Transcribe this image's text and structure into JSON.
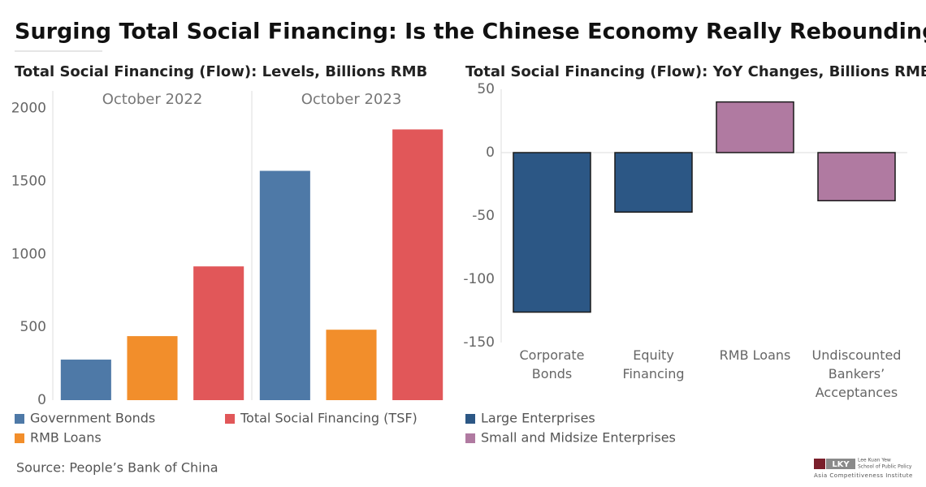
{
  "title": "Surging Total Social Financing: Is the Chinese Economy Really Rebounding?",
  "source": "Source: People’s Bank of China",
  "logo": {
    "mark": "LKY",
    "name": "Lee Kuan Yew",
    "school": "School of Public Policy",
    "institute": "Asia Competitiveness Institute"
  },
  "chart_data": [
    {
      "type": "bar",
      "title": "Total Social Financing (Flow): Levels, Billions RMB",
      "categories": [
        "October 2022",
        "October 2023"
      ],
      "series": [
        {
          "name": "Government Bonds",
          "color": "#4e79a7",
          "values": [
            278,
            1572
          ]
        },
        {
          "name": "RMB Loans",
          "color": "#f28e2b",
          "values": [
            439,
            483
          ]
        },
        {
          "name": "Total Social Financing (TSF)",
          "color": "#e15759",
          "values": [
            917,
            1856
          ]
        }
      ],
      "ylim": [
        0,
        2120
      ],
      "yticks": [
        0,
        500,
        1000,
        1500,
        2000
      ],
      "grid": false
    },
    {
      "type": "bar",
      "title": "Total Social Financing (Flow): YoY Changes, Billions RMB",
      "categories": [
        "Corporate Bonds",
        "Equity Financing",
        "RMB Loans",
        "Undiscounted Bankers’ Acceptances"
      ],
      "series": [
        {
          "name": "Large Enterprises",
          "color": "#2c5785",
          "values": [
            -126,
            -47,
            null,
            null
          ]
        },
        {
          "name": "Small and Midsize Enterprises",
          "color": "#b07aa1",
          "values": [
            null,
            null,
            40,
            -38
          ]
        }
      ],
      "edgecolor": "#1a1a1a",
      "ylim": [
        -150,
        50
      ],
      "yticks": [
        -150,
        -100,
        -50,
        0,
        50
      ],
      "grid": false
    }
  ]
}
